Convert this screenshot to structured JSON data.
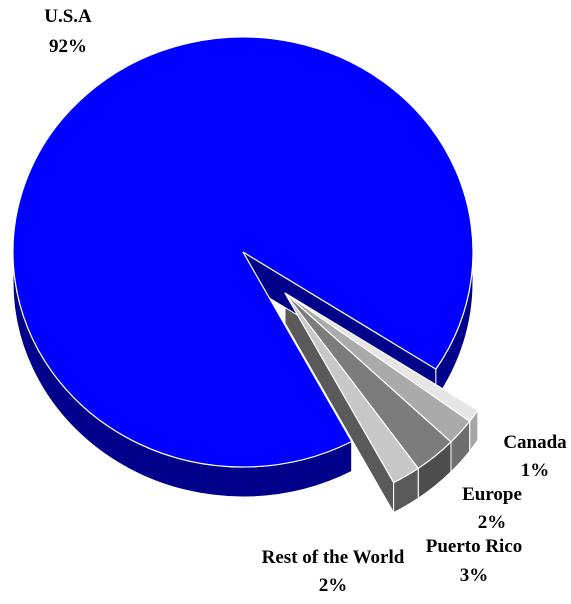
{
  "chart_data": {
    "type": "pie",
    "categories": [
      "U.S.A",
      "Canada",
      "Europe",
      "Puerto Rico",
      "Rest of the World"
    ],
    "values": [
      92,
      1,
      2,
      3,
      2
    ],
    "value_labels": [
      "92%",
      "1%",
      "2%",
      "3%",
      "2%"
    ],
    "exploded": [
      "Canada",
      "Europe",
      "Puerto Rico",
      "Rest of the World"
    ],
    "three_d": true,
    "colors": {
      "U.S.A": "#0000ff",
      "U.S.A_side": "#00008b",
      "Canada": "#e6e6e6",
      "Canada_side": "#a6a6a6",
      "Europe": "#aaaaaa",
      "Europe_side": "#6e6e6e",
      "Puerto Rico": "#7c7c7c",
      "Puerto Rico_side": "#4e4e4e",
      "Rest of the World": "#c8c8c8",
      "Rest of the World_side": "#5a5a5a"
    }
  }
}
